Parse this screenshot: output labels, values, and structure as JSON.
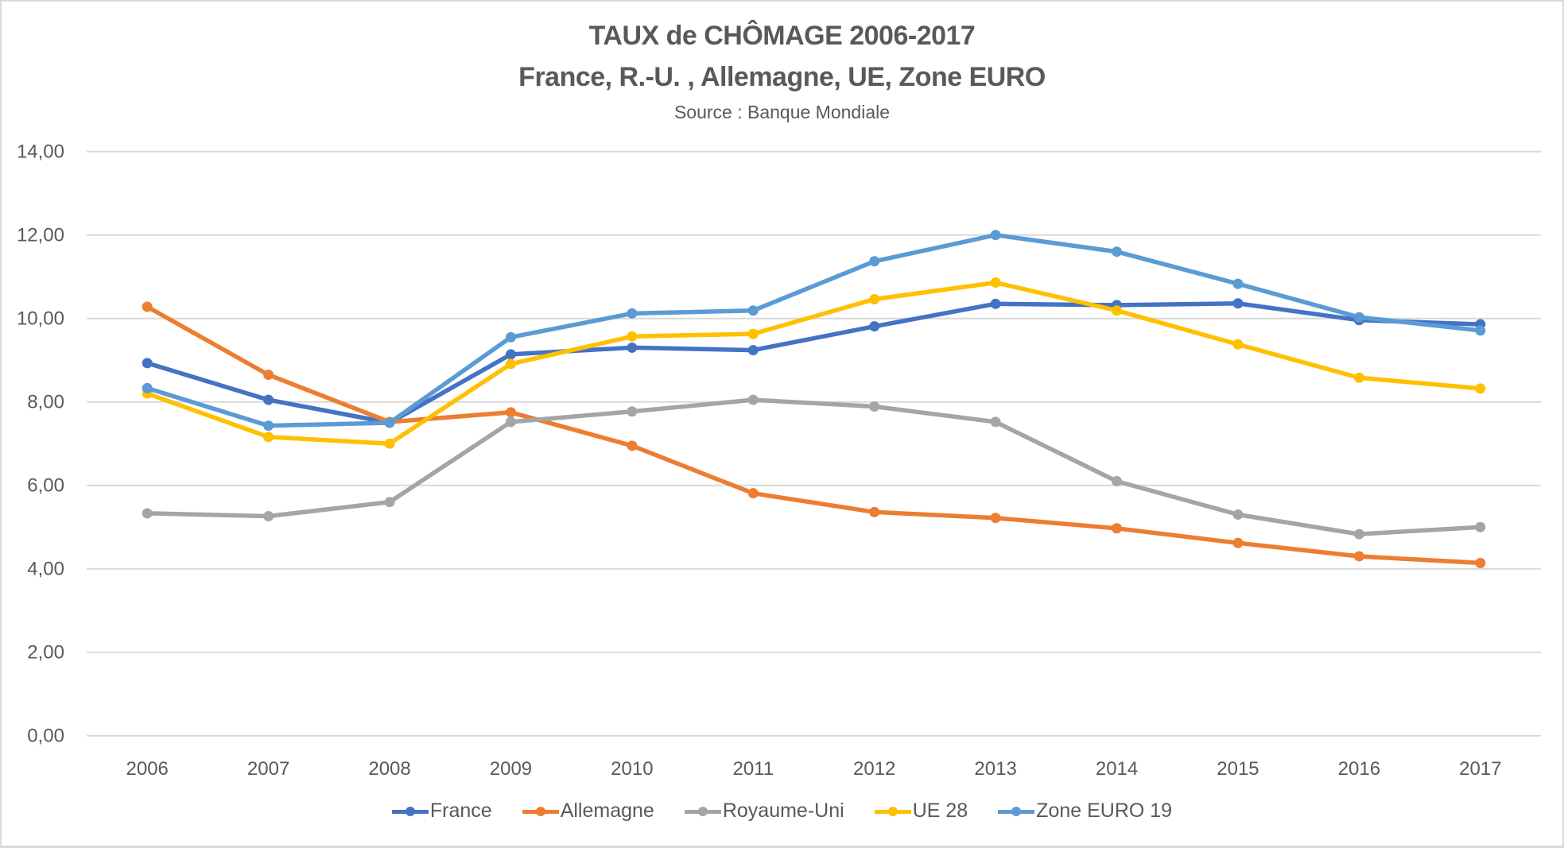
{
  "title": "TAUX de CHÔMAGE 2006-2017",
  "subtitle": "France, R.-U. , Allemagne, UE, Zone EURO",
  "source": "Source : Banque Mondiale",
  "chart_data": {
    "type": "line",
    "title": "TAUX de CHÔMAGE 2006-2017 France, R.-U. , Allemagne, UE, Zone EURO",
    "subtitle": "Source : Banque Mondiale",
    "xlabel": "",
    "ylabel": "",
    "ylim": [
      0,
      14
    ],
    "grid": true,
    "legend_position": "bottom",
    "categories": [
      "2006",
      "2007",
      "2008",
      "2009",
      "2010",
      "2011",
      "2012",
      "2013",
      "2014",
      "2015",
      "2016",
      "2017"
    ],
    "yticks": [
      "0,00",
      "2,00",
      "4,00",
      "6,00",
      "8,00",
      "10,00",
      "12,00",
      "14,00"
    ],
    "ytick_values": [
      0,
      2,
      4,
      6,
      8,
      10,
      12,
      14
    ],
    "series": [
      {
        "name": "France",
        "color": "#4472c4",
        "values": [
          8.93,
          8.05,
          7.5,
          9.14,
          9.3,
          9.24,
          9.81,
          10.35,
          10.32,
          10.36,
          9.96,
          9.86
        ]
      },
      {
        "name": "Allemagne",
        "color": "#ed7d31",
        "values": [
          10.28,
          8.65,
          7.52,
          7.75,
          6.95,
          5.81,
          5.36,
          5.22,
          4.97,
          4.62,
          4.3,
          4.14
        ]
      },
      {
        "name": "Royaume-Uni",
        "color": "#a5a5a5",
        "values": [
          5.33,
          5.26,
          5.6,
          7.52,
          7.77,
          8.05,
          7.89,
          7.52,
          6.1,
          5.3,
          4.83,
          5.0
        ]
      },
      {
        "name": "UE 28",
        "color": "#ffc000",
        "values": [
          8.2,
          7.16,
          7.0,
          8.91,
          9.57,
          9.63,
          10.46,
          10.86,
          10.19,
          9.38,
          8.58,
          8.32
        ]
      },
      {
        "name": "Zone EURO 19",
        "color": "#5b9bd5",
        "values": [
          8.33,
          7.43,
          7.5,
          9.55,
          10.12,
          10.19,
          11.37,
          12.0,
          11.6,
          10.83,
          10.03,
          9.71
        ]
      }
    ]
  }
}
